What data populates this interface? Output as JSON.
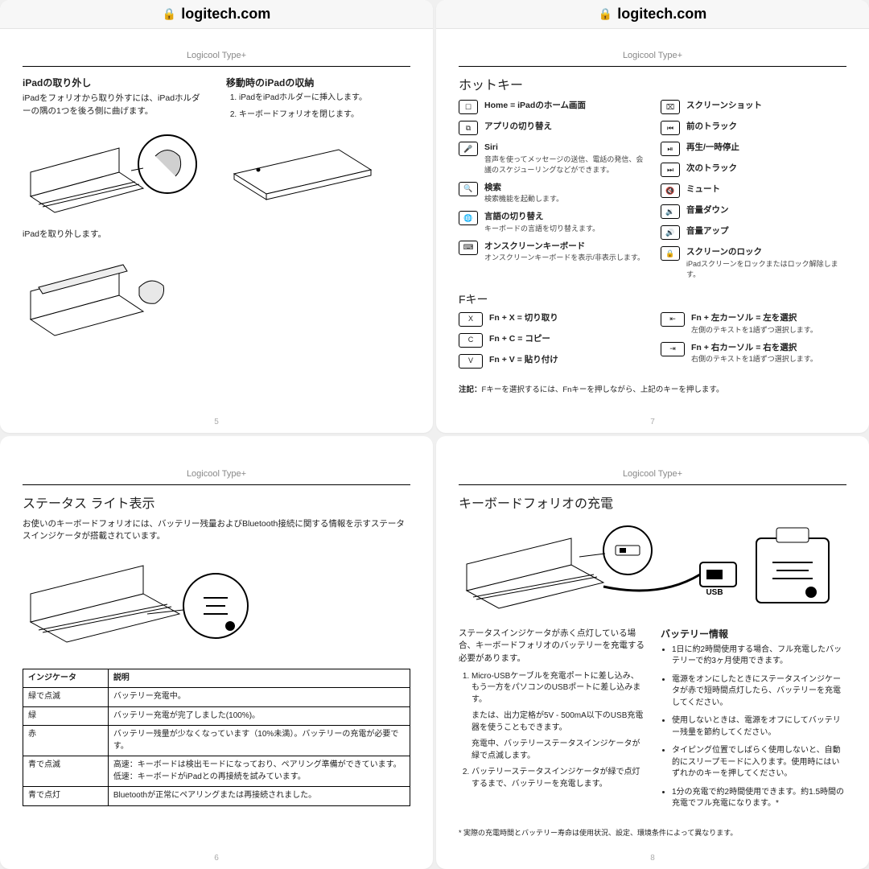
{
  "url": "logitech.com",
  "docTitle": "Logicool Type+",
  "p5": {
    "num": "5",
    "h1": "iPadの取り外し",
    "p1": "iPadをフォリオから取り外すには、iPadホルダーの隅の1つを後ろ側に曲げます。",
    "h2": "移動時のiPadの収納",
    "l1": "iPadをiPadホルダーに挿入します。",
    "l2": "キーボードフォリオを閉じます。",
    "p2": "iPadを取り外します。"
  },
  "p7": {
    "num": "7",
    "h1": "ホットキー",
    "left": [
      {
        "k": "☐",
        "t": "Home = iPadのホーム画面"
      },
      {
        "k": "⧉",
        "t": "アプリの切り替え"
      },
      {
        "k": "🎤",
        "t": "Siri",
        "d": "音声を使ってメッセージの送信、電話の発信、会議のスケジューリングなどができます。"
      },
      {
        "k": "🔍",
        "t": "検索",
        "d": "検索機能を起動します。"
      },
      {
        "k": "🌐",
        "t": "言語の切り替え",
        "d": "キーボードの言語を切り替えます。"
      },
      {
        "k": "⌨",
        "t": "オンスクリーンキーボード",
        "d": "オンスクリーンキーボードを表示/非表示します。"
      }
    ],
    "right": [
      {
        "k": "⌧",
        "t": "スクリーンショット"
      },
      {
        "k": "⏮",
        "t": "前のトラック"
      },
      {
        "k": "⏯",
        "t": "再生/一時停止"
      },
      {
        "k": "⏭",
        "t": "次のトラック"
      },
      {
        "k": "🔇",
        "t": "ミュート"
      },
      {
        "k": "🔉",
        "t": "音量ダウン"
      },
      {
        "k": "🔊",
        "t": "音量アップ"
      },
      {
        "k": "🔒",
        "t": "スクリーンのロック",
        "d": "iPadスクリーンをロックまたはロック解除します。"
      }
    ],
    "fh": "Fキー",
    "fleft": [
      {
        "k": "X",
        "t": "Fn + X = 切り取り"
      },
      {
        "k": "C",
        "t": "Fn + C = コピー"
      },
      {
        "k": "V",
        "t": "Fn + V = 貼り付け"
      }
    ],
    "fright": [
      {
        "k": "⇤",
        "t": "Fn + 左カーソル = 左を選択",
        "d": "左側のテキストを1語ずつ選択します。"
      },
      {
        "k": "⇥",
        "t": "Fn + 右カーソル = 右を選択",
        "d": "右側のテキストを1語ずつ選択します。"
      }
    ],
    "note": "Fキーを選択するには、Fnキーを押しながら、上記のキーを押します。",
    "noteLabel": "注記："
  },
  "p6": {
    "num": "6",
    "h1": "ステータス ライト表示",
    "p1": "お使いのキーボードフォリオには、バッテリー残量およびBluetooth接続に関する情報を示すステータスインジケータが搭載されています。",
    "th1": "インジケータ",
    "th2": "説明",
    "rows": [
      [
        "緑で点滅",
        "バッテリー充電中。"
      ],
      [
        "緑",
        "バッテリー充電が完了しました(100%)。"
      ],
      [
        "赤",
        "バッテリー残量が少なくなっています（10%未満）。バッテリーの充電が必要です。"
      ],
      [
        "青で点滅",
        "高速：キーボードは検出モードになっており、ペアリング準備ができています。\n低速：キーボードがiPadとの再接続を試みています。"
      ],
      [
        "青で点灯",
        "Bluetoothが正常にペアリングまたは再接続されました。"
      ]
    ]
  },
  "p8": {
    "num": "8",
    "h1": "キーボードフォリオの充電",
    "usb": "USB",
    "p1": "ステータスインジケータが赤く点灯している場合、キーボードフォリオのバッテリーを充電する必要があります。",
    "steps": [
      "Micro-USBケーブルを充電ポートに差し込み、もう一方をパソコンのUSBポートに差し込みます。",
      "バッテリーステータスインジケータが緑で点灯するまで、バッテリーを充電します。"
    ],
    "s1a": "または、出力定格が5V - 500mA以下のUSB充電器を使うこともできます。",
    "s1b": "充電中、バッテリーステータスインジケータが緑で点滅します。",
    "bh": "バッテリー情報",
    "bul": [
      "1日に約2時間使用する場合、フル充電したバッテリーで約3ヶ月使用できます。",
      "電源をオンにしたときにステータスインジケータが赤で短時間点灯したら、バッテリーを充電してください。",
      "使用しないときは、電源をオフにしてバッテリー残量を節約してください。",
      "タイピング位置でしばらく使用しないと、自動的にスリープモードに入ります。使用時にはいずれかのキーを押してください。",
      "1分の充電で約2時間使用できます。約1.5時間の充電でフル充電になります。*"
    ],
    "foot": "* 実際の充電時間とバッテリー寿命は使用状況、設定、環境条件によって異なります。"
  }
}
